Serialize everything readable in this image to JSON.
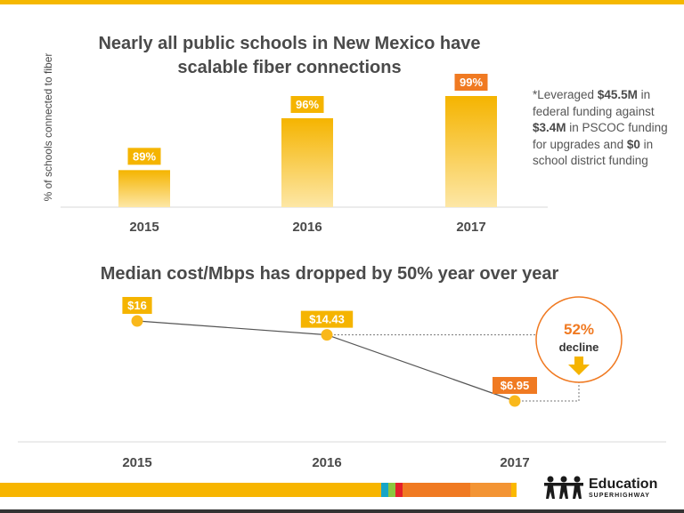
{
  "chart_data": [
    {
      "type": "bar",
      "title_lines": [
        "Nearly all public schools in New Mexico have",
        "scalable fiber connections"
      ],
      "ylabel": "% of schools connected to fiber",
      "categories": [
        "2015",
        "2016",
        "2017"
      ],
      "values": [
        89,
        96,
        99
      ],
      "value_labels": [
        "89%",
        "96%",
        "99%"
      ],
      "note": {
        "parts": [
          {
            "text": "*Leveraged ",
            "bold": false
          },
          {
            "text": "$45.5M",
            "bold": true
          },
          {
            "text": " in federal funding against ",
            "bold": false
          },
          {
            "text": "$3.4M",
            "bold": true
          },
          {
            "text": " in PSCOC funding for upgrades and ",
            "bold": false
          },
          {
            "text": "$0",
            "bold": true
          },
          {
            "text": " in school district funding",
            "bold": false
          }
        ]
      },
      "colors": {
        "bar_top": "#f5b400",
        "bar_bottom": "#fde7a6",
        "label_bg": "#f5b400",
        "label_last": "#f07a22"
      }
    },
    {
      "type": "line",
      "title": "Median cost/Mbps has dropped by 50% year over year",
      "categories": [
        "2015",
        "2016",
        "2017"
      ],
      "values": [
        16,
        14.43,
        6.95
      ],
      "value_labels": [
        "$16",
        "$14.43",
        "$6.95"
      ],
      "callout": {
        "value": "52%",
        "text": "decline"
      },
      "colors": {
        "point": "#f9b81b",
        "label_bg": "#f5b400",
        "label_last": "#f07a22",
        "callout": "#f07a22"
      }
    }
  ],
  "colors": {
    "accent": "#f5b800",
    "text": "#4a4a4a",
    "orange": "#f07a22"
  },
  "bottom_bar": [
    {
      "color": "#f7b500",
      "weight": 428
    },
    {
      "color": "#16a5c7",
      "weight": 8
    },
    {
      "color": "#8cc63f",
      "weight": 8
    },
    {
      "color": "#e4202a",
      "weight": 8
    },
    {
      "color": "#f07a22",
      "weight": 76
    },
    {
      "color": "#f39434",
      "weight": 46
    },
    {
      "color": "#fbb900",
      "weight": 8
    }
  ],
  "logo": {
    "name": "Education",
    "sub": "SUPERHIGHWAY",
    "icon": "people-icon"
  }
}
